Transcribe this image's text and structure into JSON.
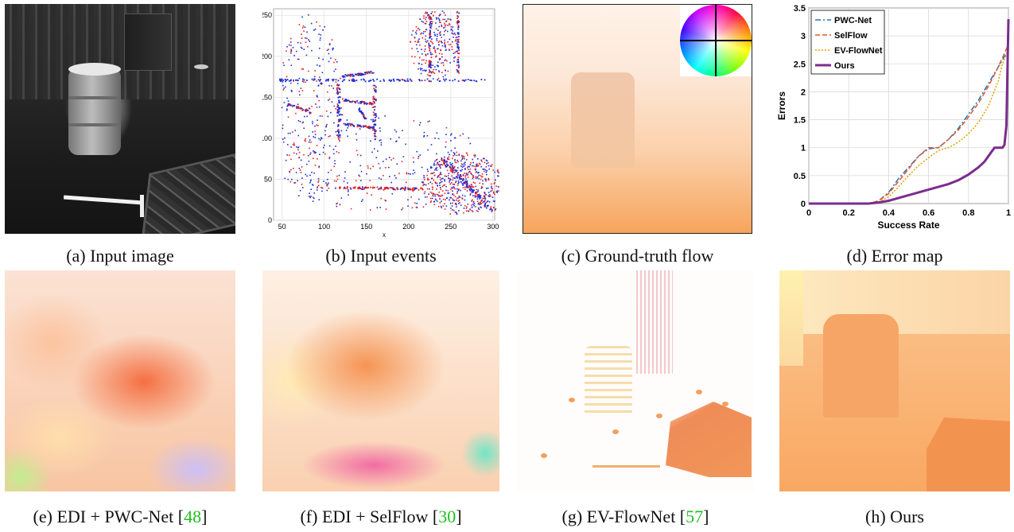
{
  "captions": {
    "a": "(a) Input image",
    "b": "(b) Input events",
    "c": "(c) Ground-truth flow",
    "d": "(d) Error map",
    "e_pre": "(e) EDI + PWC-Net [",
    "e_ref": "48",
    "e_post": "]",
    "f_pre": "(f) EDI + SelFlow [",
    "f_ref": "30",
    "f_post": "]",
    "g_pre": "(g) EV-FlowNet [",
    "g_ref": "57",
    "g_post": "]",
    "h": "(h) Ours"
  },
  "colors": {
    "event_positive": "#e8201c",
    "event_negative": "#1a2cd6",
    "citation": "#1fbf1f"
  },
  "events_plot": {
    "xlabel": "x",
    "xticks": [
      "50",
      "100",
      "150",
      "200",
      "250",
      "300"
    ],
    "yticks": [
      "0",
      "50",
      "100",
      "150",
      "200",
      "250"
    ]
  },
  "chart_data": {
    "type": "line",
    "xlabel": "Success Rate",
    "ylabel": "Errors",
    "xlim": [
      0,
      1
    ],
    "ylim": [
      0,
      3.5
    ],
    "xticks": [
      "0",
      "0.2",
      "0.4",
      "0.6",
      "0.8",
      "1"
    ],
    "yticks": [
      "0",
      "0.5",
      "1",
      "1.5",
      "2",
      "2.5",
      "3",
      "3.5"
    ],
    "grid": true,
    "legend_position": "top-left",
    "series": [
      {
        "name": "PWC-Net",
        "color": "#1f77b4",
        "style": "dashdot",
        "x": [
          0,
          0.3,
          0.35,
          0.4,
          0.45,
          0.5,
          0.55,
          0.6,
          0.65,
          0.7,
          0.75,
          0.8,
          0.85,
          0.9,
          0.95,
          1.0
        ],
        "y": [
          0,
          0,
          0.05,
          0.2,
          0.45,
          0.65,
          0.85,
          0.98,
          1.0,
          1.15,
          1.35,
          1.6,
          1.85,
          2.15,
          2.45,
          2.75
        ]
      },
      {
        "name": "SelFlow",
        "color": "#e4572e",
        "style": "dashed",
        "x": [
          0,
          0.3,
          0.35,
          0.4,
          0.45,
          0.5,
          0.55,
          0.6,
          0.65,
          0.7,
          0.75,
          0.8,
          0.85,
          0.9,
          0.95,
          1.0
        ],
        "y": [
          0,
          0,
          0.05,
          0.18,
          0.4,
          0.62,
          0.85,
          1.0,
          1.0,
          1.15,
          1.32,
          1.55,
          1.8,
          2.1,
          2.45,
          2.85
        ]
      },
      {
        "name": "EV-FlowNet",
        "color": "#e0a000",
        "style": "dotted",
        "x": [
          0,
          0.3,
          0.35,
          0.4,
          0.45,
          0.5,
          0.55,
          0.6,
          0.65,
          0.7,
          0.75,
          0.8,
          0.85,
          0.9,
          0.95,
          0.97,
          1.0
        ],
        "y": [
          0,
          0,
          0.03,
          0.12,
          0.3,
          0.5,
          0.68,
          0.82,
          0.95,
          1.0,
          1.1,
          1.25,
          1.45,
          1.75,
          2.2,
          2.5,
          2.75
        ]
      },
      {
        "name": "Ours",
        "color": "#7b2c8e",
        "style": "solid",
        "x": [
          0,
          0.3,
          0.35,
          0.4,
          0.45,
          0.5,
          0.55,
          0.6,
          0.65,
          0.7,
          0.75,
          0.8,
          0.85,
          0.88,
          0.9,
          0.93,
          0.95,
          0.97,
          0.98,
          0.99,
          1.0
        ],
        "y": [
          0,
          0,
          0.02,
          0.05,
          0.1,
          0.15,
          0.2,
          0.25,
          0.3,
          0.35,
          0.42,
          0.52,
          0.65,
          0.75,
          0.85,
          1.0,
          1.0,
          1.0,
          1.05,
          1.4,
          3.3
        ]
      }
    ]
  }
}
